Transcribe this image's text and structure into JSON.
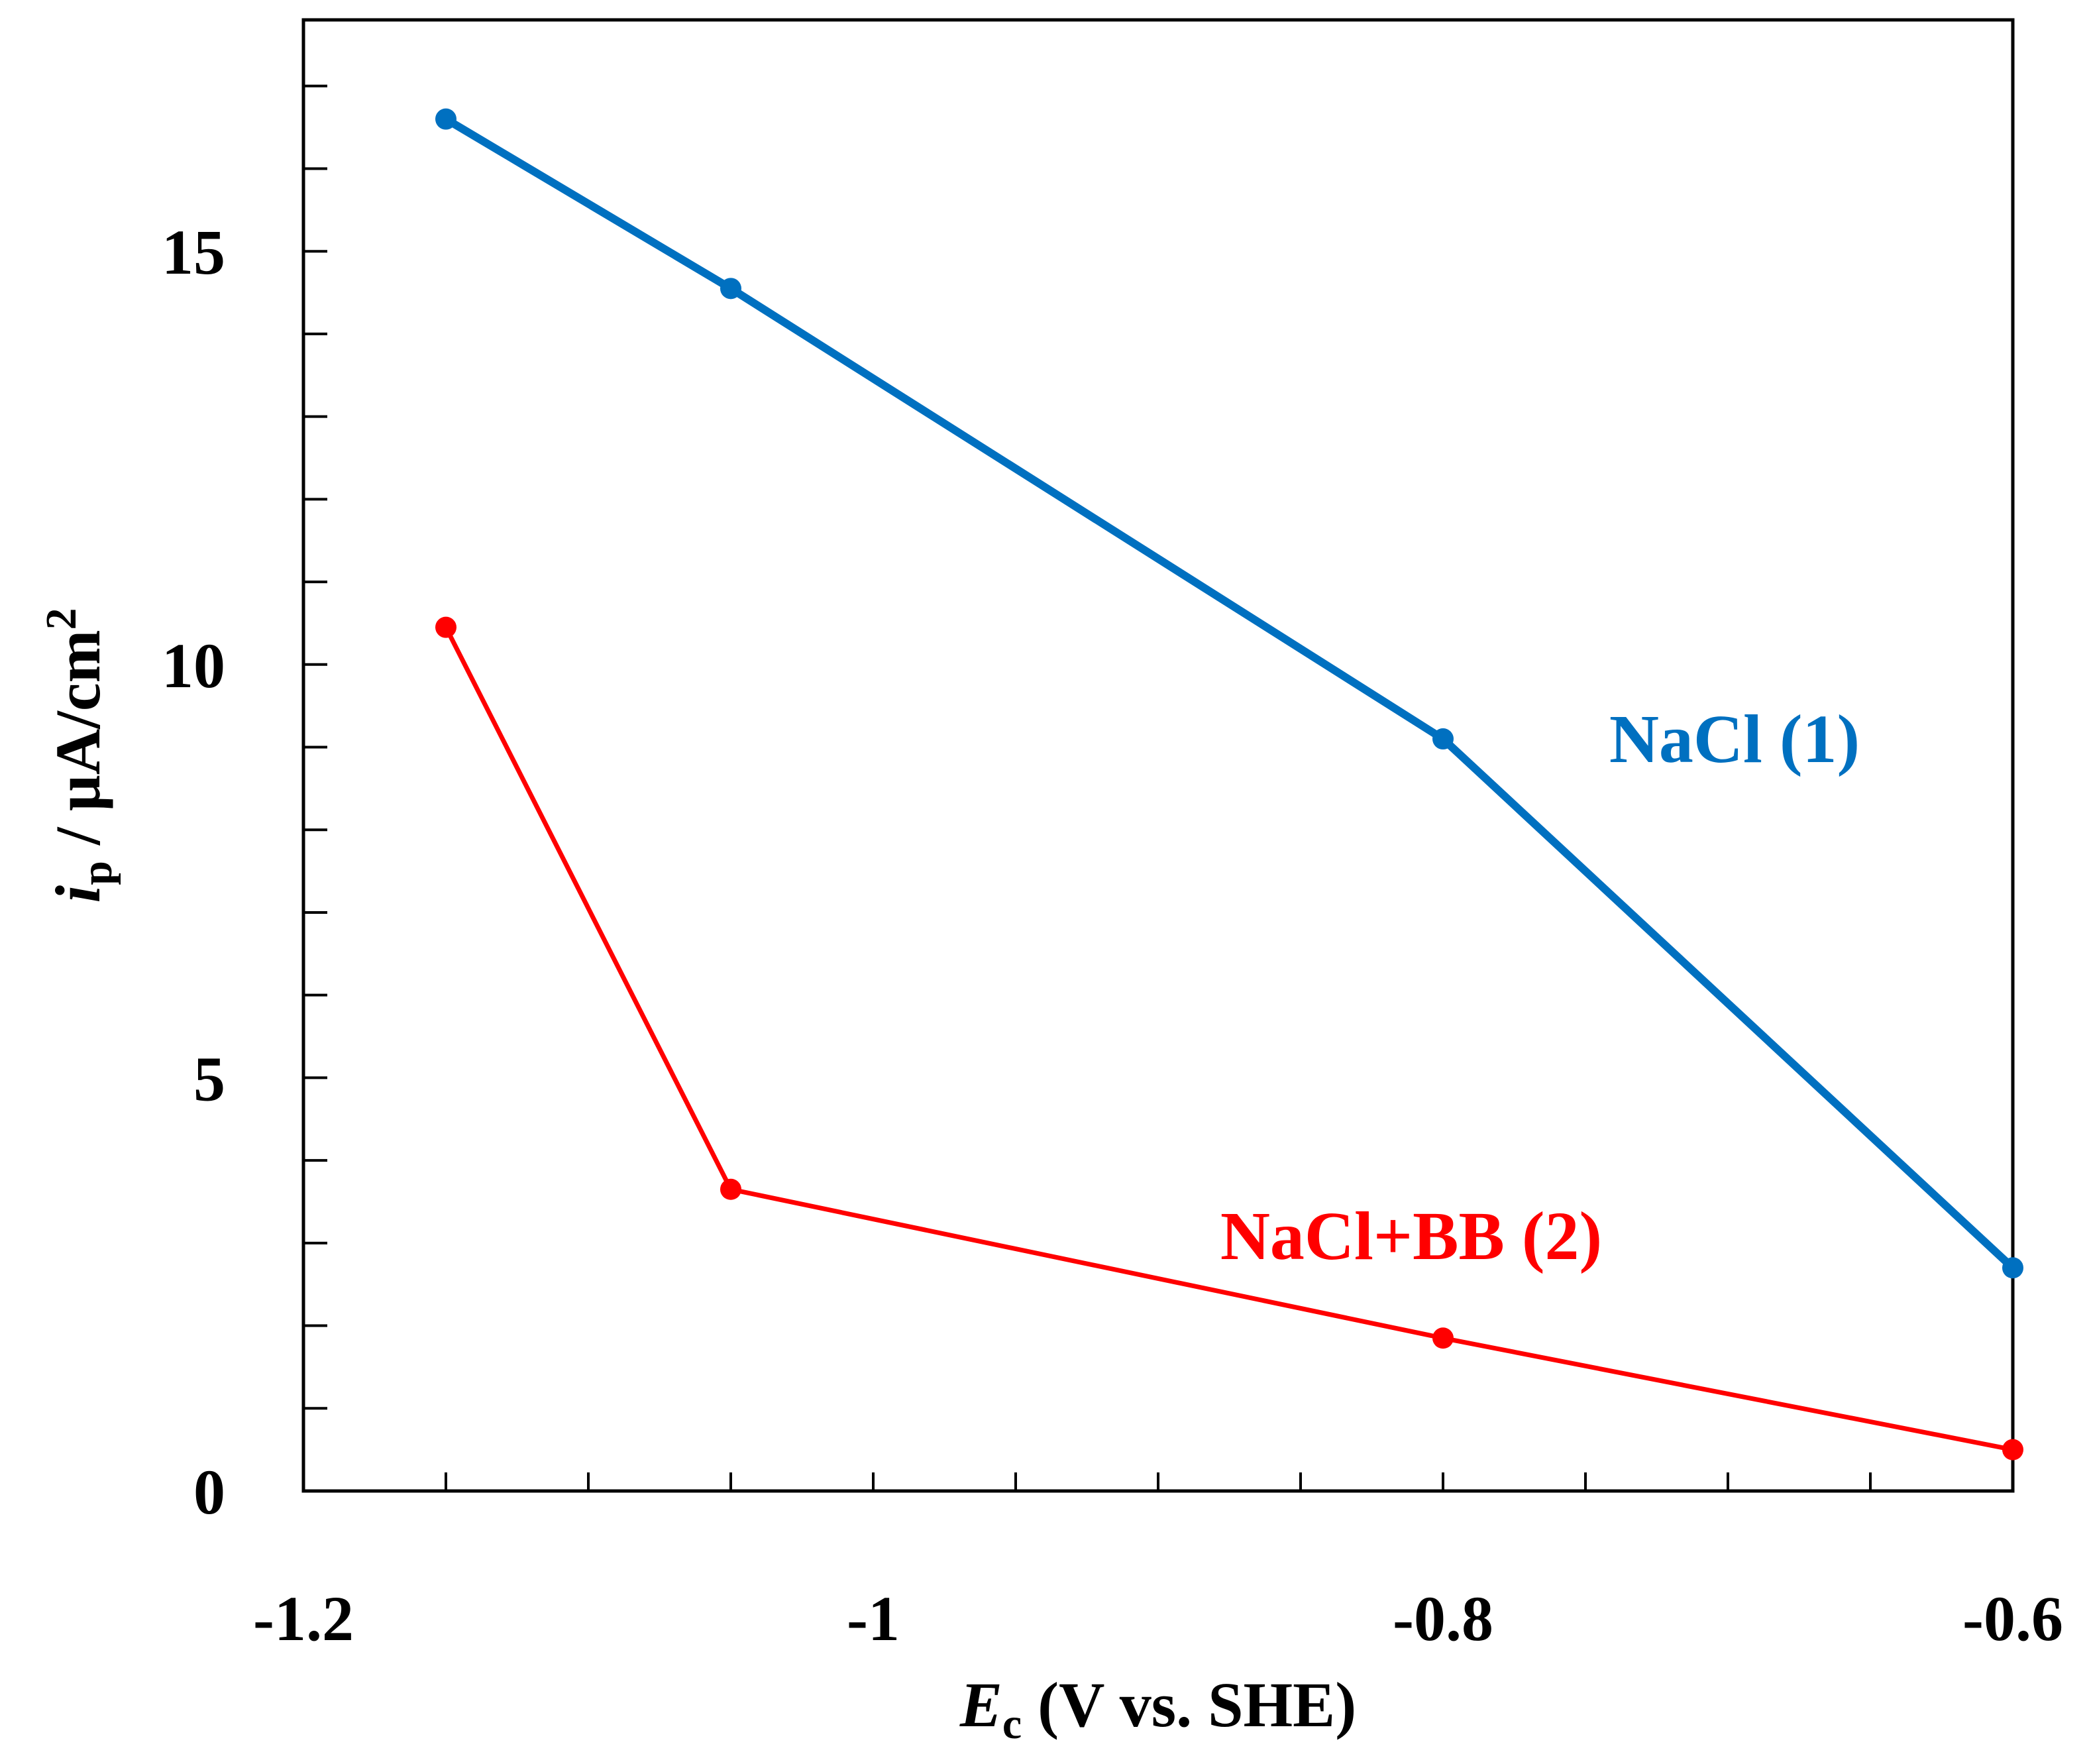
{
  "chart_data": {
    "type": "line",
    "title": "",
    "xlabel": {
      "symbol": "E",
      "subscript": "c",
      "rest": " (V vs. SHE)"
    },
    "ylabel": {
      "symbol": "i",
      "subscript": "p",
      "rest": " / µA/cm",
      "superscript": "2"
    },
    "xlim": [
      -1.2,
      -0.6
    ],
    "ylim": [
      0,
      17.8
    ],
    "x_major_ticks": [
      -1.2,
      -1,
      -0.8,
      -0.6
    ],
    "x_tick_labels": [
      "-1.2",
      "-1",
      "-0.8",
      "-0.6"
    ],
    "x_minor_ticks": [
      -1.15,
      -1.1,
      -1.05,
      -0.95,
      -0.9,
      -0.85,
      -0.75,
      -0.7,
      -0.65
    ],
    "y_major_ticks": [
      0,
      5,
      10,
      15
    ],
    "y_tick_labels": [
      "0",
      "5",
      "10",
      "15"
    ],
    "y_minor_ticks": [
      1,
      2,
      3,
      4,
      6,
      7,
      8,
      9,
      11,
      12,
      13,
      14,
      16,
      17
    ],
    "grid": false,
    "series": [
      {
        "name": "NaCl (1)",
        "color": "#0070C0",
        "x": [
          -1.15,
          -1.05,
          -0.8,
          -0.6
        ],
        "y": [
          16.6,
          14.55,
          9.1,
          2.7
        ]
      },
      {
        "name": "NaCl+BB (2)",
        "color": "#FF0000",
        "x": [
          -1.15,
          -1.05,
          -0.8,
          -0.6
        ],
        "y": [
          10.45,
          3.65,
          1.85,
          0.5
        ]
      }
    ]
  }
}
